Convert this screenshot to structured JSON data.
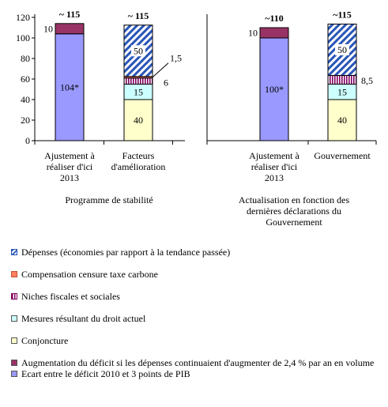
{
  "chart_data": {
    "type": "bar",
    "stacked": true,
    "ylim": [
      0,
      120
    ],
    "yticks": [
      0,
      20,
      40,
      60,
      80,
      100,
      120
    ],
    "grid": false,
    "legend_position": "bottom",
    "groups": [
      {
        "label": "Programme de stabilité",
        "label_lines": [
          "Programme de stabilité"
        ],
        "bars": [
          {
            "label_lines": [
              "Ajustement à",
              "réaliser d'ici",
              "2013"
            ],
            "total_label": "~ 115",
            "segments": [
              {
                "series": "ecart",
                "value": 104,
                "label": "104*"
              },
              {
                "series": "augmentation",
                "value": 10,
                "label": "10"
              }
            ]
          },
          {
            "label_lines": [
              "Facteurs",
              "d'amélioration"
            ],
            "total_label": "~ 115",
            "segments": [
              {
                "series": "conjoncture",
                "value": 40,
                "label": "40"
              },
              {
                "series": "mesures",
                "value": 15,
                "label": "15"
              },
              {
                "series": "niches",
                "value": 6,
                "label": "6"
              },
              {
                "series": "compensation",
                "value": 1.5,
                "label": "1,5"
              },
              {
                "series": "depenses",
                "value": 50,
                "label": "50"
              }
            ]
          }
        ]
      },
      {
        "label": "Actualisation en fonction des dernières déclarations du Gouvernement",
        "label_lines": [
          "Actualisation en fonction des",
          "dernières déclarations du",
          "Gouvernement"
        ],
        "bars": [
          {
            "label_lines": [
              "Ajustement à",
              "réaliser d'ici",
              "2013"
            ],
            "total_label": "~110",
            "segments": [
              {
                "series": "ecart",
                "value": 100,
                "label": "100*"
              },
              {
                "series": "augmentation",
                "value": 10,
                "label": "10"
              }
            ]
          },
          {
            "label_lines": [
              "Gouvernement"
            ],
            "total_label": "~115",
            "segments": [
              {
                "series": "conjoncture",
                "value": 40,
                "label": "40"
              },
              {
                "series": "mesures",
                "value": 15,
                "label": "15"
              },
              {
                "series": "niches",
                "value": 8.5,
                "label": "8,5"
              },
              {
                "series": "depenses",
                "value": 50,
                "label": "50"
              }
            ]
          }
        ]
      }
    ],
    "legend": [
      {
        "series": "depenses",
        "label": "Dépenses (économies par rapport à la tendance passée)"
      },
      {
        "series": "compensation",
        "label": "Compensation censure taxe carbone"
      },
      {
        "series": "niches",
        "label": "Niches fiscales et sociales"
      },
      {
        "series": "mesures",
        "label": "Mesures résultant du droit actuel"
      },
      {
        "series": "conjoncture",
        "label": "Conjoncture"
      },
      {
        "series": "augmentation",
        "label": "Augmentation du déficit si les dépenses continuaient d'augmenter de 2,4 % par an en volume"
      },
      {
        "series": "ecart",
        "label": "Ecart entre le déficit 2010 et 3 points de PIB"
      }
    ],
    "colors": {
      "ecart": "#9999ff",
      "augmentation": "#993366",
      "conjoncture": "#ffffcc",
      "mesures": "#ccffff",
      "niches": "#800060",
      "compensation": "#ff8060",
      "depenses": "#2a56b8"
    }
  }
}
